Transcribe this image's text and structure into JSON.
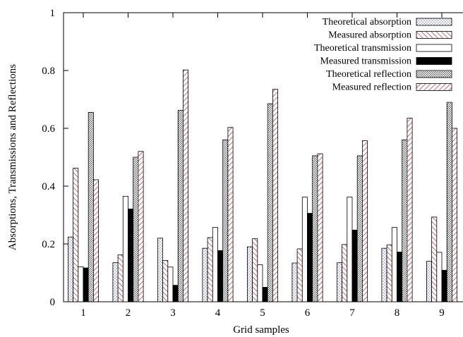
{
  "chart_data": {
    "type": "bar",
    "xlabel": "Grid samples",
    "ylabel": "Absorptions, Transmissions and Reflections",
    "categories": [
      "1",
      "2",
      "3",
      "4",
      "5",
      "6",
      "7",
      "8",
      "9"
    ],
    "ylim": [
      0,
      1
    ],
    "yticks": [
      "0",
      "0.2",
      "0.4",
      "0.6",
      "0.8",
      "1"
    ],
    "legend_position": "top-right",
    "series": [
      {
        "name": "Theoretical absorption",
        "pattern": "dots-light",
        "color": "#3a3a8a",
        "values": [
          0.224,
          0.135,
          0.22,
          0.185,
          0.19,
          0.134,
          0.135,
          0.185,
          0.14
        ]
      },
      {
        "name": "Measured absorption",
        "pattern": "hatch-forward",
        "color": "#b03030",
        "values": [
          0.462,
          0.162,
          0.143,
          0.222,
          0.218,
          0.183,
          0.198,
          0.197,
          0.293
        ]
      },
      {
        "name": "Theoretical transmission",
        "pattern": "empty",
        "color": "#000000",
        "values": [
          0.121,
          0.365,
          0.12,
          0.257,
          0.128,
          0.362,
          0.362,
          0.257,
          0.171
        ]
      },
      {
        "name": "Measured transmission",
        "pattern": "solid",
        "color": "#000000",
        "values": [
          0.117,
          0.321,
          0.057,
          0.177,
          0.05,
          0.306,
          0.248,
          0.172,
          0.109
        ]
      },
      {
        "name": "Theoretical reflection",
        "pattern": "dots-dense",
        "color": "#000000",
        "values": [
          0.655,
          0.5,
          0.662,
          0.56,
          0.685,
          0.505,
          0.505,
          0.56,
          0.69
        ]
      },
      {
        "name": "Measured reflection",
        "pattern": "hatch-back",
        "color": "#b03030",
        "values": [
          0.422,
          0.52,
          0.802,
          0.603,
          0.735,
          0.512,
          0.557,
          0.635,
          0.6
        ]
      }
    ]
  }
}
